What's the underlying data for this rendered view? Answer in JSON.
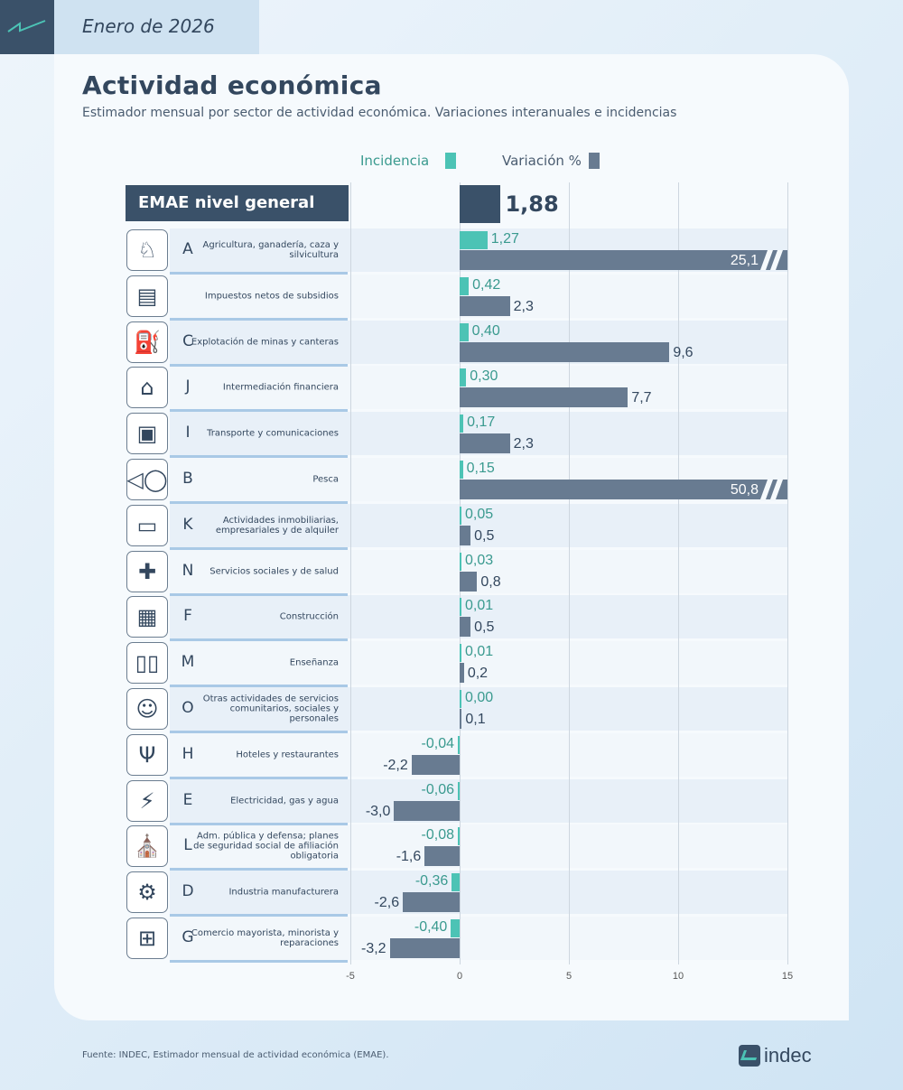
{
  "header": {
    "period": "Enero de 2026",
    "title": "Actividad económica",
    "subtitle": "Estimador mensual por sector de actividad económica. Variaciones interanuales e incidencias"
  },
  "colors": {
    "incidencia": "#4cc3b5",
    "variacion": "#687b91",
    "general": "#3a5169",
    "incidencia_text": "#3a9a8f"
  },
  "chart_data": {
    "type": "bar",
    "orientation": "horizontal",
    "legend": [
      {
        "name": "Incidencia",
        "position": "top"
      },
      {
        "name": "Variación %",
        "position": "top"
      }
    ],
    "general": {
      "label": "EMAE nivel general",
      "value": 1.88,
      "value_label": "1,88"
    },
    "xlim": [
      -5,
      15
    ],
    "xticks": [
      "-5",
      "0",
      "5",
      "10",
      "15"
    ],
    "grid": true,
    "categories": [
      {
        "letter": "A",
        "name": "Agricultura, ganadería, caza y silvicultura",
        "icon": "cow-plant-icon",
        "incidencia": 1.27,
        "inc_label": "1,27",
        "variacion": 25.1,
        "var_label": "25,1",
        "axis_break": true
      },
      {
        "letter": "",
        "name": "Impuestos netos de subsidios",
        "icon": "tax-document-icon",
        "incidencia": 0.42,
        "inc_label": "0,42",
        "variacion": 2.3,
        "var_label": "2,3"
      },
      {
        "letter": "C",
        "name": "Explotación de minas y canteras",
        "icon": "oil-pump-icon",
        "incidencia": 0.4,
        "inc_label": "0,40",
        "variacion": 9.6,
        "var_label": "9,6"
      },
      {
        "letter": "J",
        "name": "Intermediación financiera",
        "icon": "bank-icon",
        "incidencia": 0.3,
        "inc_label": "0,30",
        "variacion": 7.7,
        "var_label": "7,7"
      },
      {
        "letter": "I",
        "name": "Transporte y comunicaciones",
        "icon": "bus-phone-icon",
        "incidencia": 0.17,
        "inc_label": "0,17",
        "variacion": 2.3,
        "var_label": "2,3"
      },
      {
        "letter": "B",
        "name": "Pesca",
        "icon": "fish-icon",
        "incidencia": 0.15,
        "inc_label": "0,15",
        "variacion": 50.8,
        "var_label": "50,8",
        "axis_break": true
      },
      {
        "letter": "K",
        "name": "Actividades inmobiliarias, empresariales y de alquiler",
        "icon": "monitor-key-icon",
        "incidencia": 0.05,
        "inc_label": "0,05",
        "variacion": 0.5,
        "var_label": "0,5"
      },
      {
        "letter": "N",
        "name": "Servicios sociales y de salud",
        "icon": "health-cross-icon",
        "incidencia": 0.03,
        "inc_label": "0,03",
        "variacion": 0.8,
        "var_label": "0,8"
      },
      {
        "letter": "F",
        "name": "Construcción",
        "icon": "bricks-helmet-icon",
        "incidencia": 0.01,
        "inc_label": "0,01",
        "variacion": 0.5,
        "var_label": "0,5"
      },
      {
        "letter": "M",
        "name": "Enseñanza",
        "icon": "book-icon",
        "incidencia": 0.01,
        "inc_label": "0,01",
        "variacion": 0.2,
        "var_label": "0,2"
      },
      {
        "letter": "O",
        "name": "Otras actividades de servicios comunitarios, sociales y personales",
        "icon": "theater-masks-ball-icon",
        "incidencia": 0.0,
        "inc_label": "0,00",
        "variacion": 0.1,
        "var_label": "0,1"
      },
      {
        "letter": "H",
        "name": "Hoteles y restaurantes",
        "icon": "cutlery-hotel-icon",
        "incidencia": -0.04,
        "inc_label": "-0,04",
        "variacion": -2.2,
        "var_label": "-2,2"
      },
      {
        "letter": "E",
        "name": "Electricidad, gas y agua",
        "icon": "drop-flame-bolt-icon",
        "incidencia": -0.06,
        "inc_label": "-0,06",
        "variacion": -3.0,
        "var_label": "-3,0"
      },
      {
        "letter": "L",
        "name": "Adm. pública y defensa; planes de seguridad social de afiliación obligatoria",
        "icon": "government-building-icon",
        "incidencia": -0.08,
        "inc_label": "-0,08",
        "variacion": -1.6,
        "var_label": "-1,6"
      },
      {
        "letter": "D",
        "name": "Industria manufacturera",
        "icon": "gears-icon",
        "incidencia": -0.36,
        "inc_label": "-0,36",
        "variacion": -2.6,
        "var_label": "-2,6"
      },
      {
        "letter": "G",
        "name": "Comercio mayorista, minorista y reparaciones",
        "icon": "shopping-cart-icon",
        "incidencia": -0.4,
        "inc_label": "-0,40",
        "variacion": -3.2,
        "var_label": "-3,2"
      }
    ]
  },
  "footer": {
    "source": "Fuente: INDEC, Estimador mensual de actividad económica (EMAE).",
    "logo_text": "indec"
  }
}
